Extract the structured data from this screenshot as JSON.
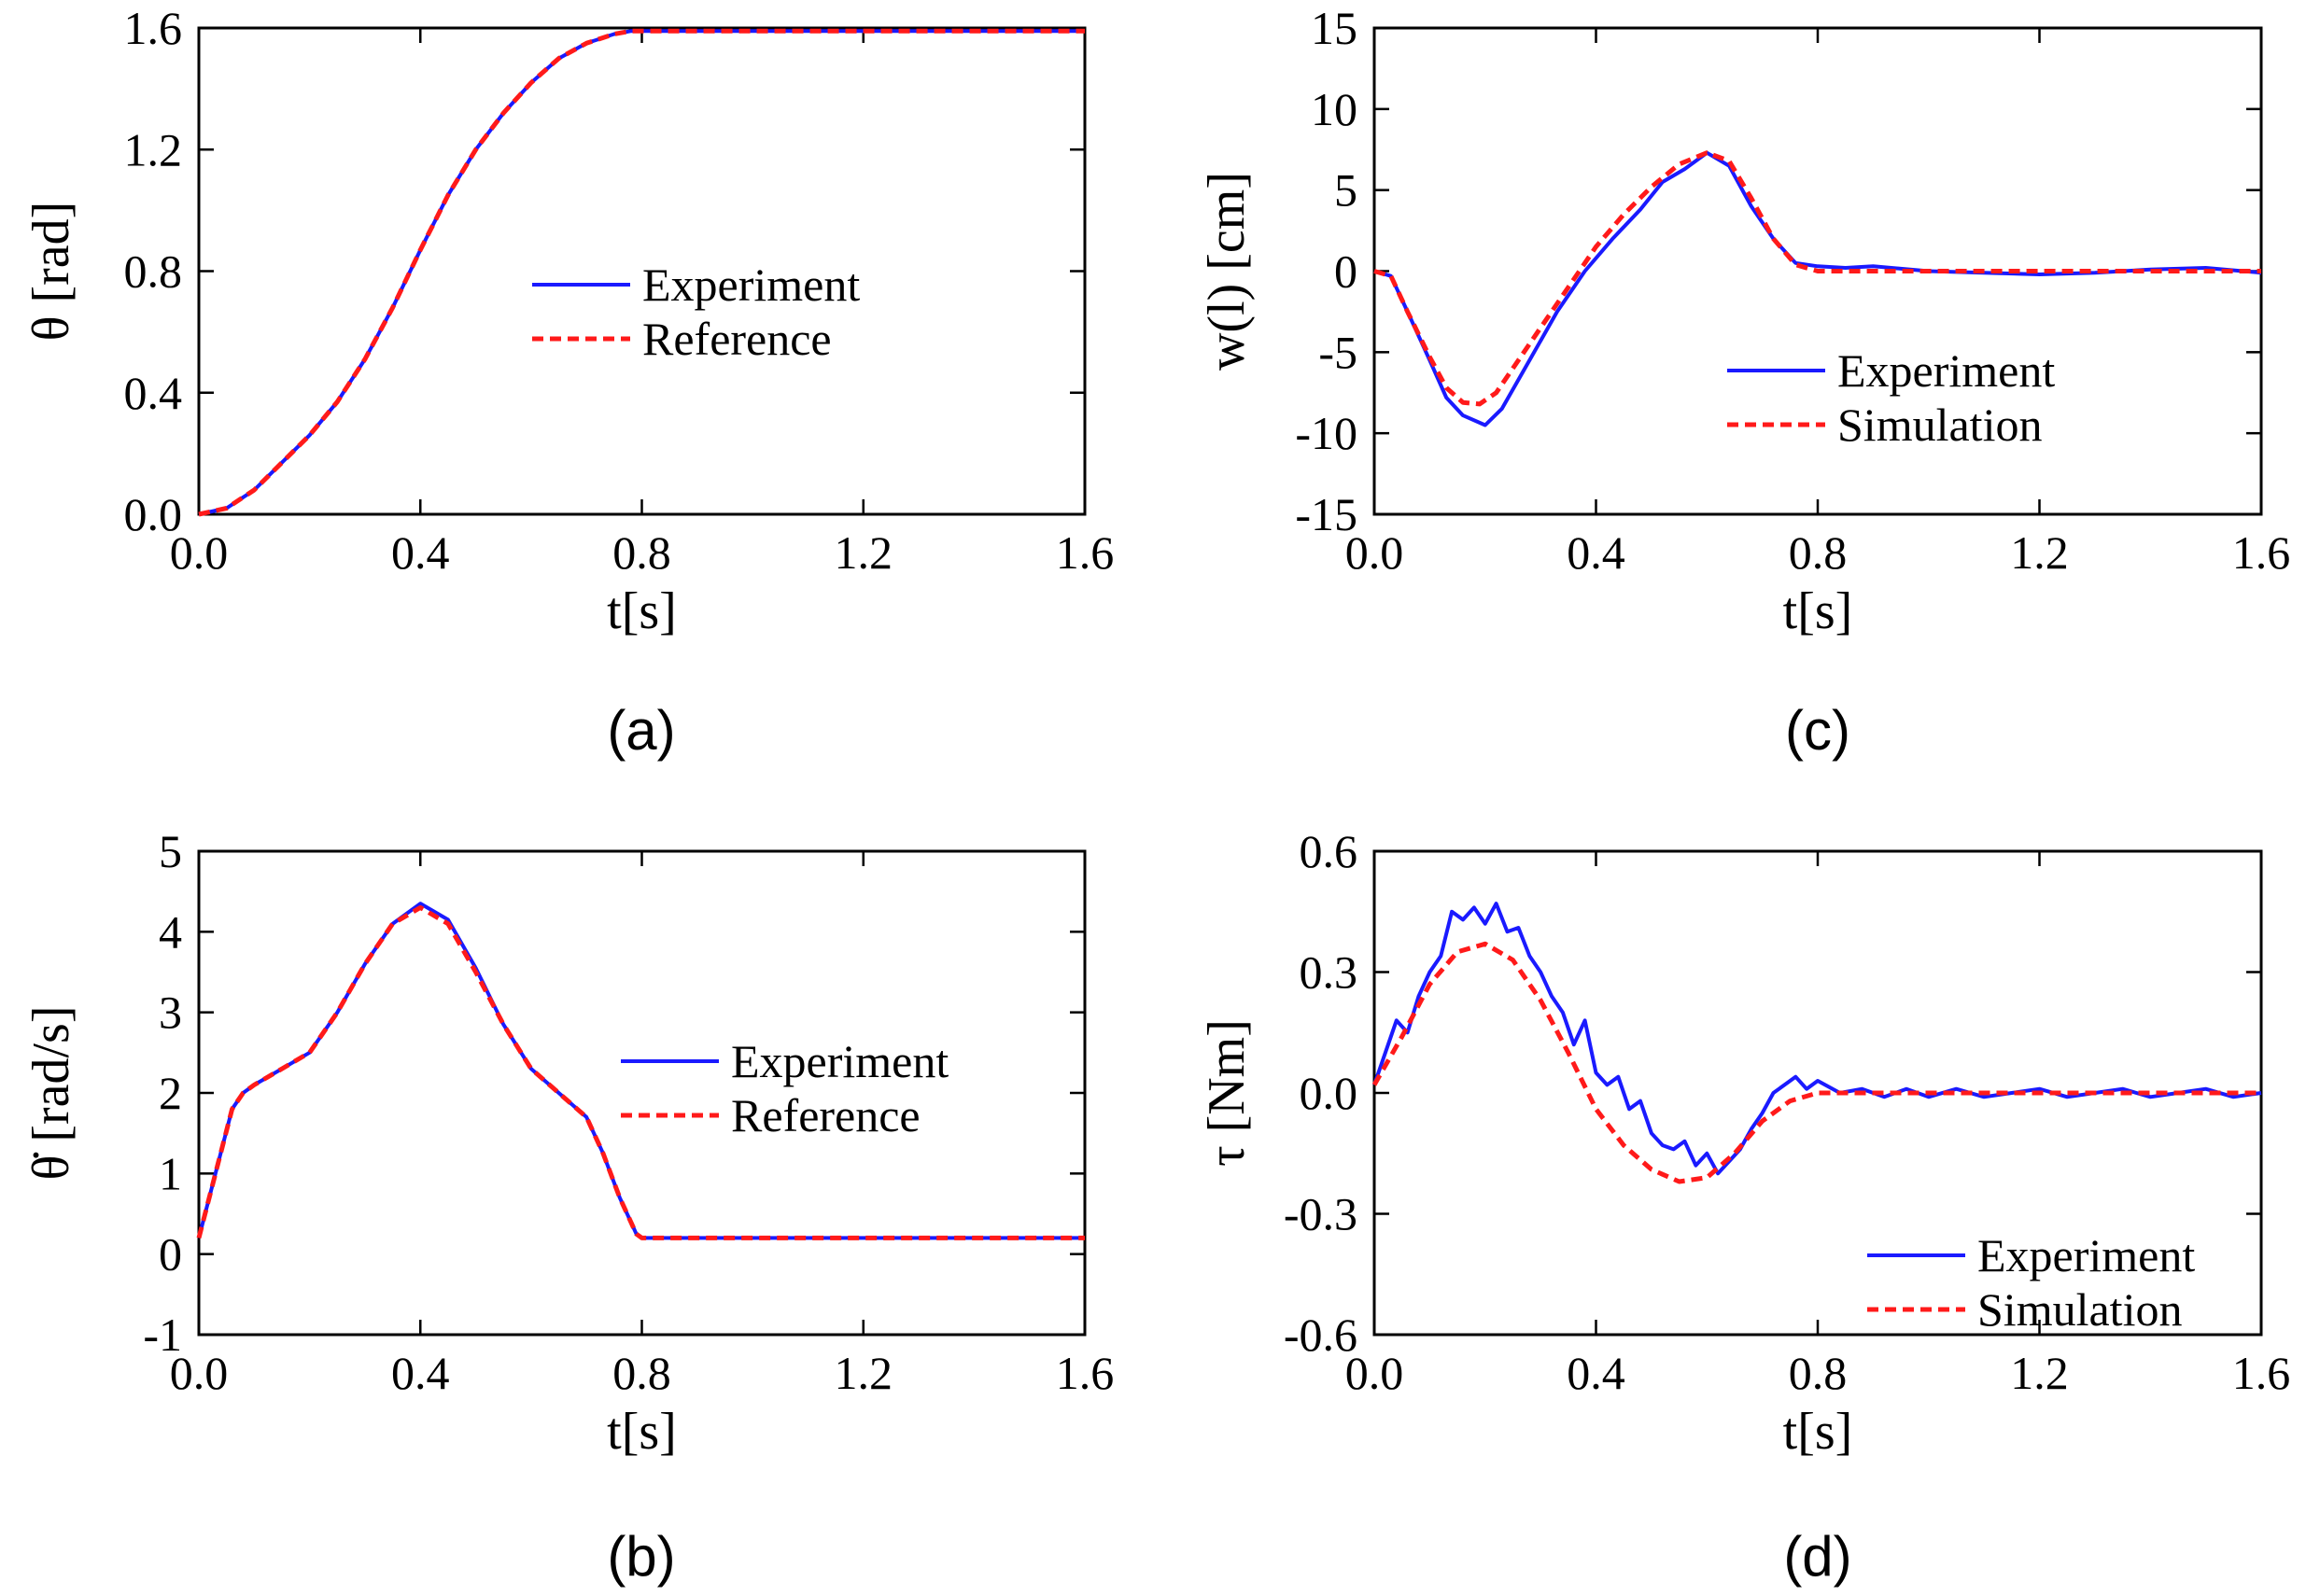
{
  "colors": {
    "experiment": "#1a1aff",
    "reference": "#ff1a1a",
    "axis": "#000000"
  },
  "chart_data": [
    {
      "type": "line",
      "caption": "(a)",
      "xlabel": "t[s]",
      "ylabel": "θ [rad]",
      "xlim": [
        0.0,
        1.6
      ],
      "ylim": [
        0.0,
        1.6
      ],
      "xticks": [
        0.0,
        0.4,
        0.8,
        1.2,
        1.6
      ],
      "xtick_labels": [
        "0.0",
        "0.4",
        "0.8",
        "1.2",
        "1.6"
      ],
      "yticks": [
        0.0,
        0.4,
        0.8,
        1.2,
        1.6
      ],
      "ytick_labels": [
        "0.0",
        "0.4",
        "0.8",
        "1.2",
        "1.6"
      ],
      "legend_position": "center",
      "series": [
        {
          "name": "Experiment",
          "style": "solid",
          "color": "#1a1aff",
          "x": [
            0.0,
            0.05,
            0.1,
            0.15,
            0.2,
            0.25,
            0.3,
            0.35,
            0.4,
            0.45,
            0.5,
            0.55,
            0.6,
            0.65,
            0.7,
            0.75,
            0.78,
            0.8,
            1.0,
            1.2,
            1.4,
            1.6
          ],
          "y": [
            0.0,
            0.02,
            0.08,
            0.17,
            0.26,
            0.37,
            0.51,
            0.68,
            0.87,
            1.05,
            1.2,
            1.32,
            1.42,
            1.5,
            1.55,
            1.58,
            1.59,
            1.59,
            1.59,
            1.59,
            1.59,
            1.59
          ]
        },
        {
          "name": "Reference",
          "style": "dashed",
          "color": "#ff1a1a",
          "x": [
            0.0,
            0.05,
            0.1,
            0.15,
            0.2,
            0.25,
            0.3,
            0.35,
            0.4,
            0.45,
            0.5,
            0.55,
            0.6,
            0.65,
            0.7,
            0.75,
            0.78,
            0.8,
            1.0,
            1.2,
            1.4,
            1.6
          ],
          "y": [
            0.0,
            0.02,
            0.08,
            0.17,
            0.26,
            0.37,
            0.51,
            0.68,
            0.87,
            1.05,
            1.2,
            1.32,
            1.42,
            1.5,
            1.55,
            1.58,
            1.59,
            1.59,
            1.59,
            1.59,
            1.59,
            1.59
          ]
        }
      ]
    },
    {
      "type": "line",
      "caption": "(b)",
      "xlabel": "t[s]",
      "ylabel": "θ̇ [rad/s]",
      "xlim": [
        0.0,
        1.6
      ],
      "ylim": [
        -1,
        5
      ],
      "xticks": [
        0.0,
        0.4,
        0.8,
        1.2,
        1.6
      ],
      "xtick_labels": [
        "0.0",
        "0.4",
        "0.8",
        "1.2",
        "1.6"
      ],
      "yticks": [
        -1,
        0,
        1,
        2,
        3,
        4,
        5
      ],
      "ytick_labels": [
        "-1",
        "0",
        "1",
        "2",
        "3",
        "4",
        "5"
      ],
      "legend_position": "center-right",
      "series": [
        {
          "name": "Experiment",
          "style": "solid",
          "color": "#1a1aff",
          "x": [
            0.0,
            0.03,
            0.06,
            0.08,
            0.1,
            0.15,
            0.2,
            0.25,
            0.3,
            0.35,
            0.4,
            0.45,
            0.5,
            0.55,
            0.6,
            0.65,
            0.7,
            0.73,
            0.76,
            0.79,
            0.8,
            0.9,
            1.0,
            1.2,
            1.4,
            1.6
          ],
          "y": [
            0.2,
            1.0,
            1.8,
            2.0,
            2.1,
            2.3,
            2.5,
            3.0,
            3.6,
            4.1,
            4.35,
            4.15,
            3.55,
            2.85,
            2.3,
            2.0,
            1.7,
            1.25,
            0.7,
            0.25,
            0.2,
            0.2,
            0.2,
            0.2,
            0.2,
            0.2
          ]
        },
        {
          "name": "Reference",
          "style": "dashed",
          "color": "#ff1a1a",
          "x": [
            0.0,
            0.03,
            0.06,
            0.08,
            0.1,
            0.15,
            0.2,
            0.25,
            0.3,
            0.35,
            0.4,
            0.45,
            0.5,
            0.55,
            0.6,
            0.65,
            0.7,
            0.73,
            0.76,
            0.79,
            0.8,
            0.9,
            1.0,
            1.2,
            1.4,
            1.6
          ],
          "y": [
            0.2,
            1.0,
            1.8,
            2.0,
            2.1,
            2.3,
            2.5,
            3.0,
            3.6,
            4.1,
            4.3,
            4.1,
            3.5,
            2.85,
            2.3,
            2.0,
            1.7,
            1.25,
            0.7,
            0.25,
            0.2,
            0.2,
            0.2,
            0.2,
            0.2,
            0.2
          ]
        }
      ]
    },
    {
      "type": "line",
      "caption": "(c)",
      "xlabel": "t[s]",
      "ylabel": "w(l) [cm]",
      "xlim": [
        0.0,
        1.6
      ],
      "ylim": [
        -15,
        15
      ],
      "xticks": [
        0.0,
        0.4,
        0.8,
        1.2,
        1.6
      ],
      "xtick_labels": [
        "0.0",
        "0.4",
        "0.8",
        "1.2",
        "1.6"
      ],
      "yticks": [
        -15,
        -10,
        -5,
        0,
        5,
        10,
        15
      ],
      "ytick_labels": [
        "-15",
        "-10",
        "-5",
        "0",
        "5",
        "10",
        "15"
      ],
      "legend_position": "lower-right",
      "series": [
        {
          "name": "Experiment",
          "style": "solid",
          "color": "#1a1aff",
          "x": [
            0.0,
            0.03,
            0.06,
            0.1,
            0.13,
            0.16,
            0.2,
            0.23,
            0.28,
            0.33,
            0.38,
            0.43,
            0.48,
            0.52,
            0.56,
            0.6,
            0.64,
            0.68,
            0.72,
            0.76,
            0.8,
            0.85,
            0.9,
            1.0,
            1.1,
            1.2,
            1.3,
            1.4,
            1.5,
            1.6
          ],
          "y": [
            0.0,
            -0.3,
            -2.5,
            -5.5,
            -7.8,
            -8.9,
            -9.5,
            -8.5,
            -5.5,
            -2.5,
            0.0,
            2.0,
            3.8,
            5.5,
            6.3,
            7.3,
            6.5,
            4.0,
            2.0,
            0.5,
            0.3,
            0.2,
            0.3,
            0.0,
            -0.1,
            -0.2,
            -0.1,
            0.1,
            0.2,
            -0.1
          ]
        },
        {
          "name": "Simulation",
          "style": "dashed",
          "color": "#ff1a1a",
          "x": [
            0.0,
            0.03,
            0.06,
            0.1,
            0.13,
            0.16,
            0.19,
            0.22,
            0.26,
            0.3,
            0.35,
            0.4,
            0.45,
            0.5,
            0.55,
            0.6,
            0.64,
            0.68,
            0.72,
            0.76,
            0.8,
            0.9,
            1.0,
            1.2,
            1.4,
            1.6
          ],
          "y": [
            0.0,
            -0.3,
            -2.5,
            -5.3,
            -7.2,
            -8.1,
            -8.2,
            -7.5,
            -5.5,
            -3.5,
            -1.0,
            1.5,
            3.5,
            5.2,
            6.6,
            7.3,
            6.8,
            4.5,
            2.0,
            0.4,
            0.0,
            0.0,
            0.0,
            0.0,
            0.0,
            0.0
          ]
        }
      ]
    },
    {
      "type": "line",
      "caption": "(d)",
      "xlabel": "t[s]",
      "ylabel": "τ  [Nm]",
      "xlim": [
        0.0,
        1.6
      ],
      "ylim": [
        -0.6,
        0.6
      ],
      "xticks": [
        0.0,
        0.4,
        0.8,
        1.2,
        1.6
      ],
      "xtick_labels": [
        "0.0",
        "0.4",
        "0.8",
        "1.2",
        "1.6"
      ],
      "yticks": [
        -0.6,
        -0.3,
        0.0,
        0.3,
        0.6
      ],
      "ytick_labels": [
        "-0.6",
        "-0.3",
        "0.0",
        "0.3",
        "0.6"
      ],
      "legend_position": "lower-right",
      "series": [
        {
          "name": "Experiment",
          "style": "solid",
          "color": "#1a1aff",
          "x": [
            0.0,
            0.02,
            0.04,
            0.06,
            0.08,
            0.1,
            0.12,
            0.14,
            0.16,
            0.18,
            0.2,
            0.22,
            0.24,
            0.26,
            0.28,
            0.3,
            0.32,
            0.34,
            0.36,
            0.38,
            0.4,
            0.42,
            0.44,
            0.46,
            0.48,
            0.5,
            0.52,
            0.54,
            0.56,
            0.58,
            0.6,
            0.62,
            0.64,
            0.66,
            0.68,
            0.7,
            0.72,
            0.74,
            0.76,
            0.78,
            0.8,
            0.84,
            0.88,
            0.92,
            0.96,
            1.0,
            1.05,
            1.1,
            1.15,
            1.2,
            1.25,
            1.3,
            1.35,
            1.4,
            1.45,
            1.5,
            1.55,
            1.6
          ],
          "y": [
            0.02,
            0.1,
            0.18,
            0.15,
            0.24,
            0.3,
            0.34,
            0.45,
            0.43,
            0.46,
            0.42,
            0.47,
            0.4,
            0.41,
            0.34,
            0.3,
            0.24,
            0.2,
            0.12,
            0.18,
            0.05,
            0.02,
            0.04,
            -0.04,
            -0.02,
            -0.1,
            -0.13,
            -0.14,
            -0.12,
            -0.18,
            -0.15,
            -0.2,
            -0.17,
            -0.14,
            -0.09,
            -0.05,
            0.0,
            0.02,
            0.04,
            0.01,
            0.03,
            0.0,
            0.01,
            -0.01,
            0.01,
            -0.01,
            0.01,
            -0.01,
            0.0,
            0.01,
            -0.01,
            0.0,
            0.01,
            -0.01,
            0.0,
            0.01,
            -0.01,
            0.0
          ]
        },
        {
          "name": "Simulation",
          "style": "dashed",
          "color": "#ff1a1a",
          "x": [
            0.0,
            0.05,
            0.1,
            0.15,
            0.2,
            0.25,
            0.3,
            0.35,
            0.4,
            0.45,
            0.5,
            0.55,
            0.6,
            0.65,
            0.7,
            0.75,
            0.8,
            0.9,
            1.0,
            1.2,
            1.4,
            1.6
          ],
          "y": [
            0.02,
            0.14,
            0.27,
            0.35,
            0.37,
            0.33,
            0.23,
            0.1,
            -0.04,
            -0.13,
            -0.19,
            -0.22,
            -0.21,
            -0.15,
            -0.07,
            -0.02,
            0.0,
            0.0,
            0.0,
            0.0,
            0.0,
            0.0
          ]
        }
      ]
    }
  ]
}
